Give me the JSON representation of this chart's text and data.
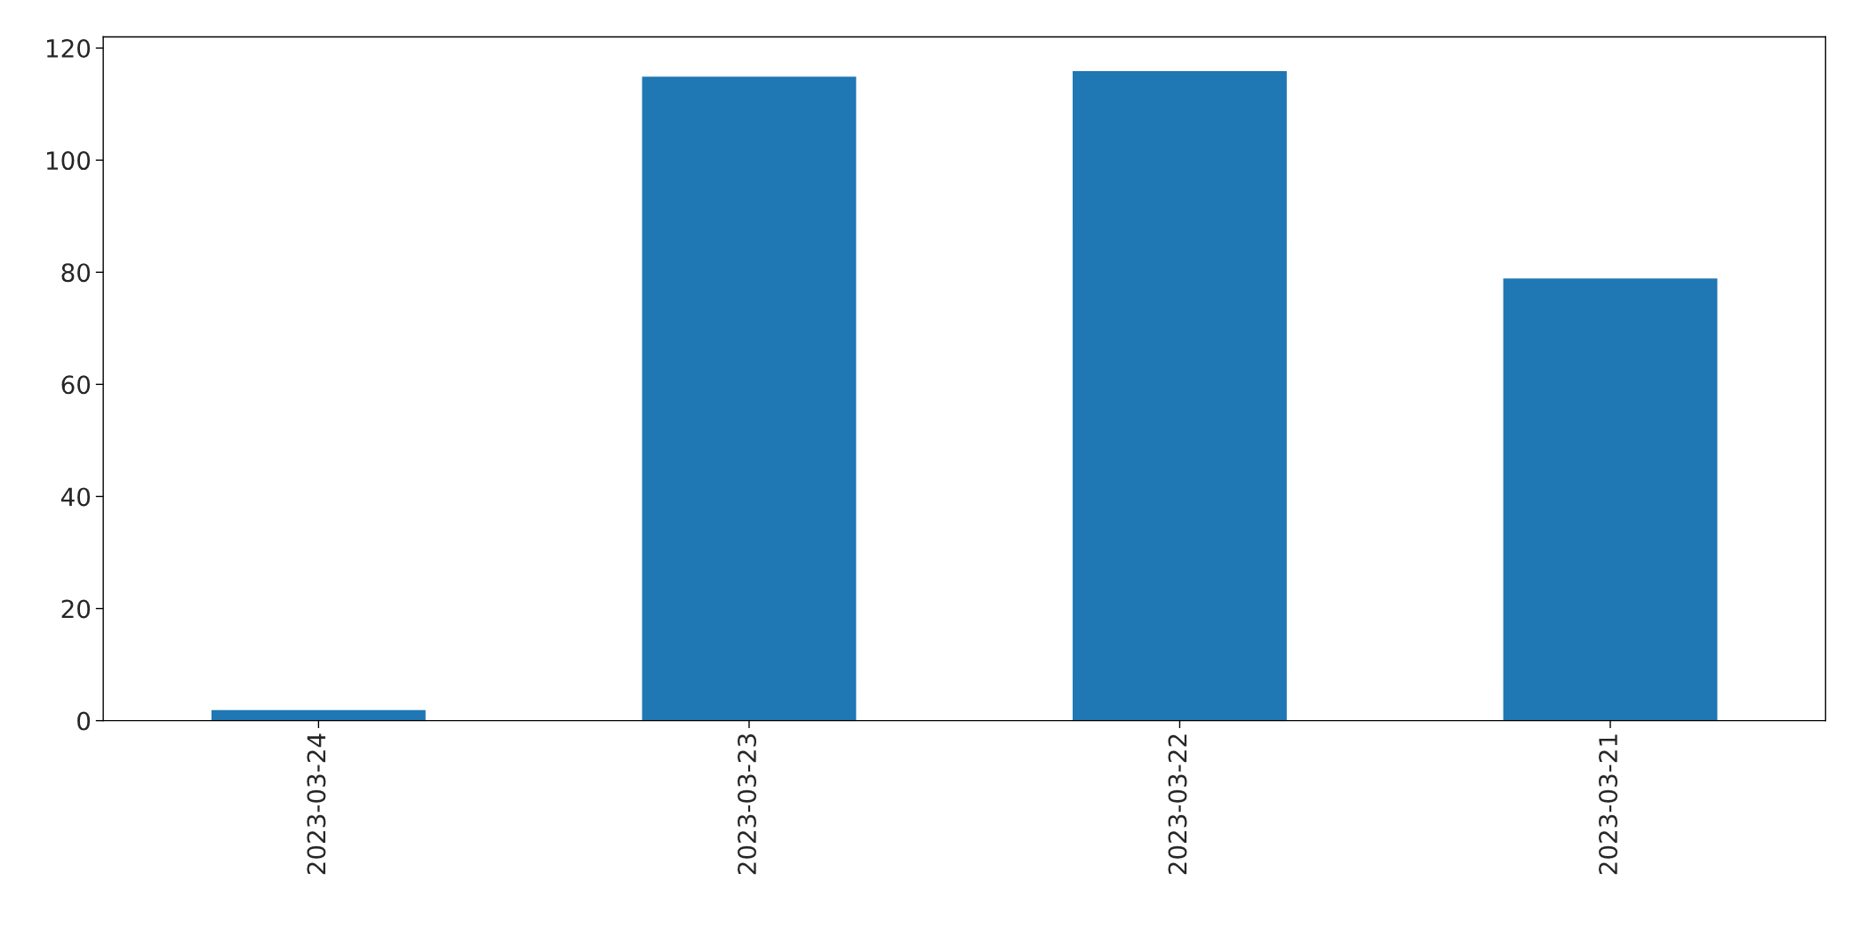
{
  "chart_data": {
    "type": "bar",
    "categories": [
      "2023-03-24",
      "2023-03-23",
      "2023-03-22",
      "2023-03-21"
    ],
    "values": [
      2,
      115,
      116,
      79
    ],
    "color": "#1f77b4",
    "ylim": [
      0,
      122
    ],
    "yticks": [
      0,
      20,
      40,
      60,
      80,
      100,
      120
    ],
    "grid": false,
    "legend": false
  }
}
